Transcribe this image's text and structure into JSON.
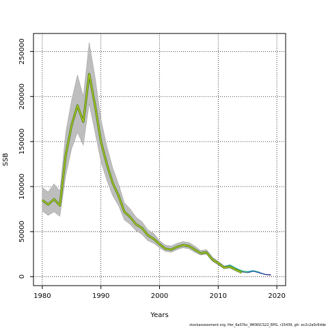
{
  "footer_text": "stockassessment.org, Her_6aS7bc_WKNSCS22_BPG, r15439, git: ec2c2a0c6dde",
  "colors": {
    "band": "#bebebe",
    "band_edge": "#a6a6a6",
    "main_outer": "#4a7a1e",
    "main_inner": "#a8c81e",
    "retro": [
      "#1a1a8a",
      "#1b4fa0",
      "#1e8a9a",
      "#2aa6b8",
      "#44b866"
    ]
  },
  "chart_data": {
    "type": "line",
    "title": "",
    "xlabel": "Years",
    "ylabel": "SSB",
    "xlim": [
      1978.5,
      2021.5
    ],
    "ylim": [
      -10000,
      270000
    ],
    "xticks": [
      1980,
      1990,
      2000,
      2010,
      2020
    ],
    "yticks": [
      0,
      50000,
      100000,
      150000,
      200000,
      250000
    ],
    "grid": true,
    "series": [
      {
        "role": "estimate",
        "x": [
          1980,
          1981,
          1982,
          1983,
          1984,
          1985,
          1986,
          1987,
          1988,
          1989,
          1990,
          1991,
          1992,
          1993,
          1994,
          1995,
          1996,
          1997,
          1998,
          1999,
          2000,
          2001,
          2002,
          2003,
          2004,
          2005,
          2006,
          2007,
          2008,
          2009,
          2010,
          2011,
          2012,
          2013,
          2014
        ],
        "y": [
          85000,
          80000,
          86000,
          79000,
          135000,
          168000,
          190000,
          172000,
          225000,
          190000,
          150000,
          125000,
          104000,
          90000,
          72000,
          66000,
          58000,
          54000,
          46000,
          42000,
          36000,
          31000,
          30000,
          33000,
          35000,
          34000,
          30000,
          26000,
          27000,
          19000,
          15000,
          10000,
          11000,
          7500,
          4500
        ],
        "lower": [
          73000,
          68000,
          72000,
          67000,
          112000,
          142000,
          160000,
          146000,
          192000,
          160000,
          128000,
          107000,
          90000,
          79000,
          63000,
          58000,
          51000,
          47000,
          40000,
          37000,
          32000,
          28000,
          27000,
          30000,
          32000,
          31000,
          27000,
          24000,
          25000,
          17000,
          13000,
          9000,
          9500,
          6500,
          3800
        ],
        "upper": [
          99000,
          94000,
          103000,
          95000,
          160000,
          196000,
          224000,
          200000,
          260000,
          222000,
          175000,
          145000,
          121000,
          103000,
          82000,
          75000,
          66000,
          61000,
          52000,
          48000,
          40000,
          35000,
          34000,
          37000,
          39000,
          38000,
          34000,
          29000,
          30000,
          22000,
          17000,
          12000,
          13000,
          9000,
          5500
        ]
      },
      {
        "role": "peel",
        "x": [
          2010,
          2011,
          2012,
          2013,
          2014,
          2015,
          2016,
          2017,
          2018,
          2019
        ],
        "y": [
          14500,
          9800,
          11500,
          8500,
          5500,
          4500,
          6000,
          4500,
          2500,
          1800
        ]
      },
      {
        "role": "peel",
        "x": [
          2010,
          2011,
          2012,
          2013,
          2014,
          2015,
          2016,
          2017,
          2018
        ],
        "y": [
          15000,
          10200,
          12000,
          8800,
          5800,
          5200,
          6200,
          4200,
          2600
        ]
      },
      {
        "role": "peel",
        "x": [
          2010,
          2011,
          2012,
          2013,
          2014,
          2015,
          2016,
          2017
        ],
        "y": [
          15200,
          10500,
          12500,
          9200,
          6000,
          5500,
          6500,
          5000
        ]
      },
      {
        "role": "peel",
        "x": [
          2010,
          2011,
          2012,
          2013,
          2014,
          2015,
          2016
        ],
        "y": [
          15500,
          10800,
          13000,
          9500,
          6500,
          5200,
          6800
        ]
      },
      {
        "role": "peel",
        "x": [
          2010,
          2011,
          2012,
          2013,
          2014,
          2015
        ],
        "y": [
          15300,
          10300,
          12200,
          9000,
          6200,
          4800
        ]
      }
    ]
  }
}
